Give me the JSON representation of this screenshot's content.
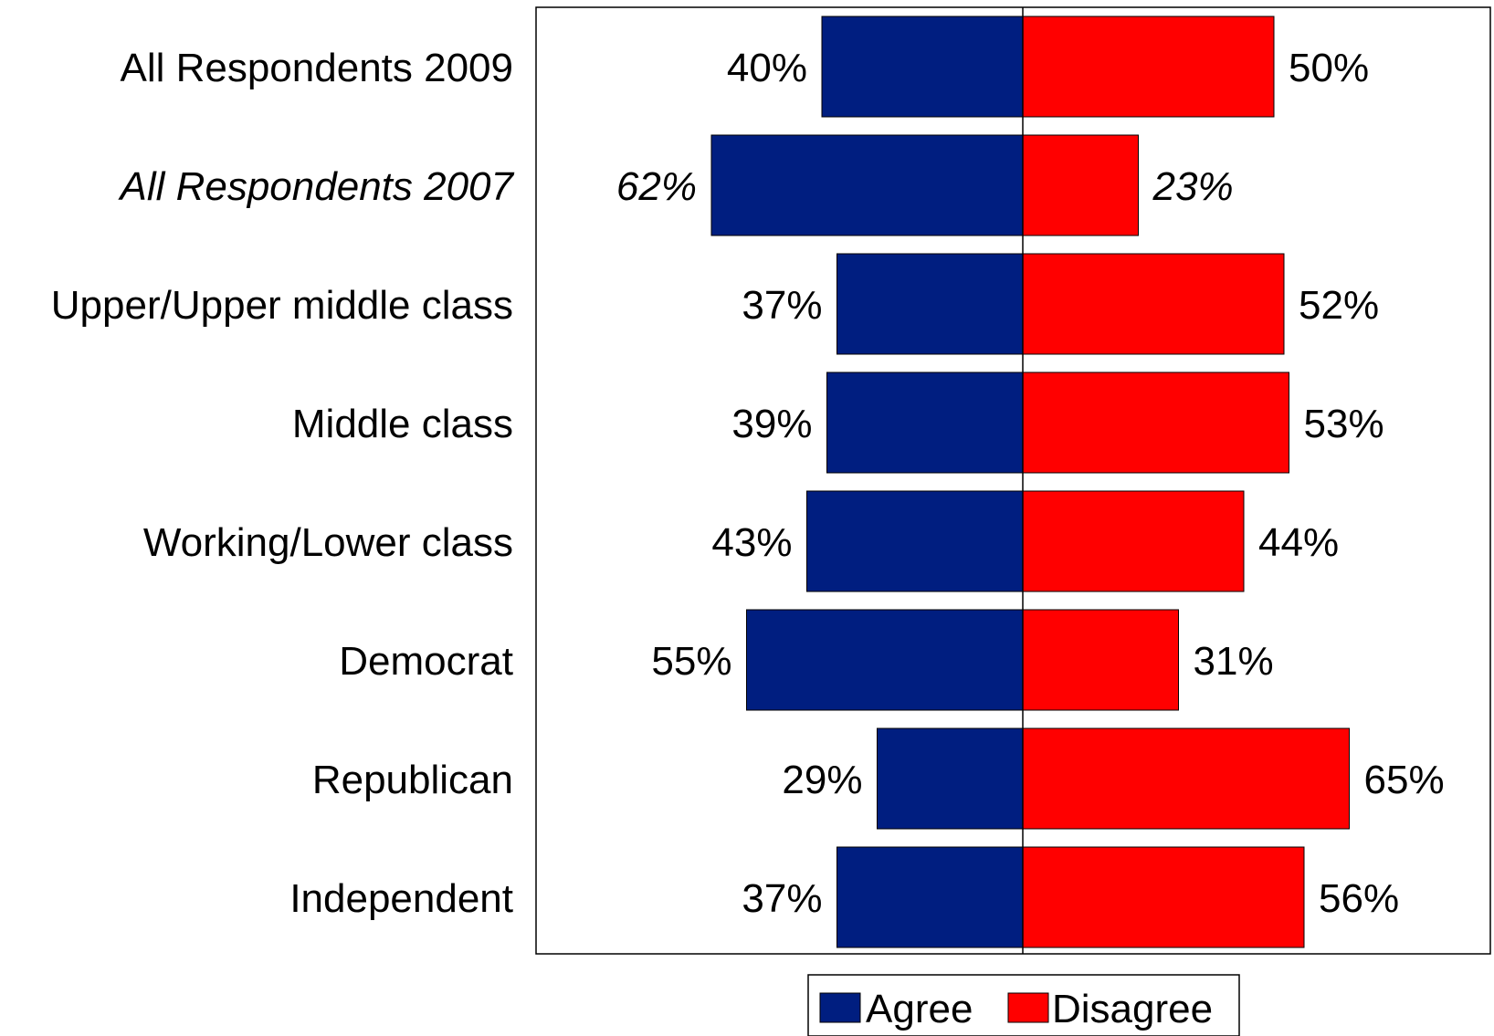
{
  "chart_data": {
    "type": "bar",
    "orientation": "horizontal-diverging",
    "categories": [
      "All Respondents 2009",
      "All Respondents 2007",
      "Upper/Upper middle class",
      "Middle class",
      "Working/Lower class",
      "Democrat",
      "Republican",
      "Independent"
    ],
    "italic_categories": [
      "All Respondents 2007"
    ],
    "series": [
      {
        "name": "Agree",
        "color": "#001E80",
        "direction": "left",
        "values": [
          40,
          62,
          37,
          39,
          43,
          55,
          29,
          37
        ]
      },
      {
        "name": "Disagree",
        "color": "#FF0000",
        "direction": "right",
        "values": [
          50,
          23,
          52,
          53,
          44,
          31,
          65,
          56
        ]
      }
    ],
    "value_suffix": "%",
    "legend_position": "bottom",
    "grid": false
  }
}
